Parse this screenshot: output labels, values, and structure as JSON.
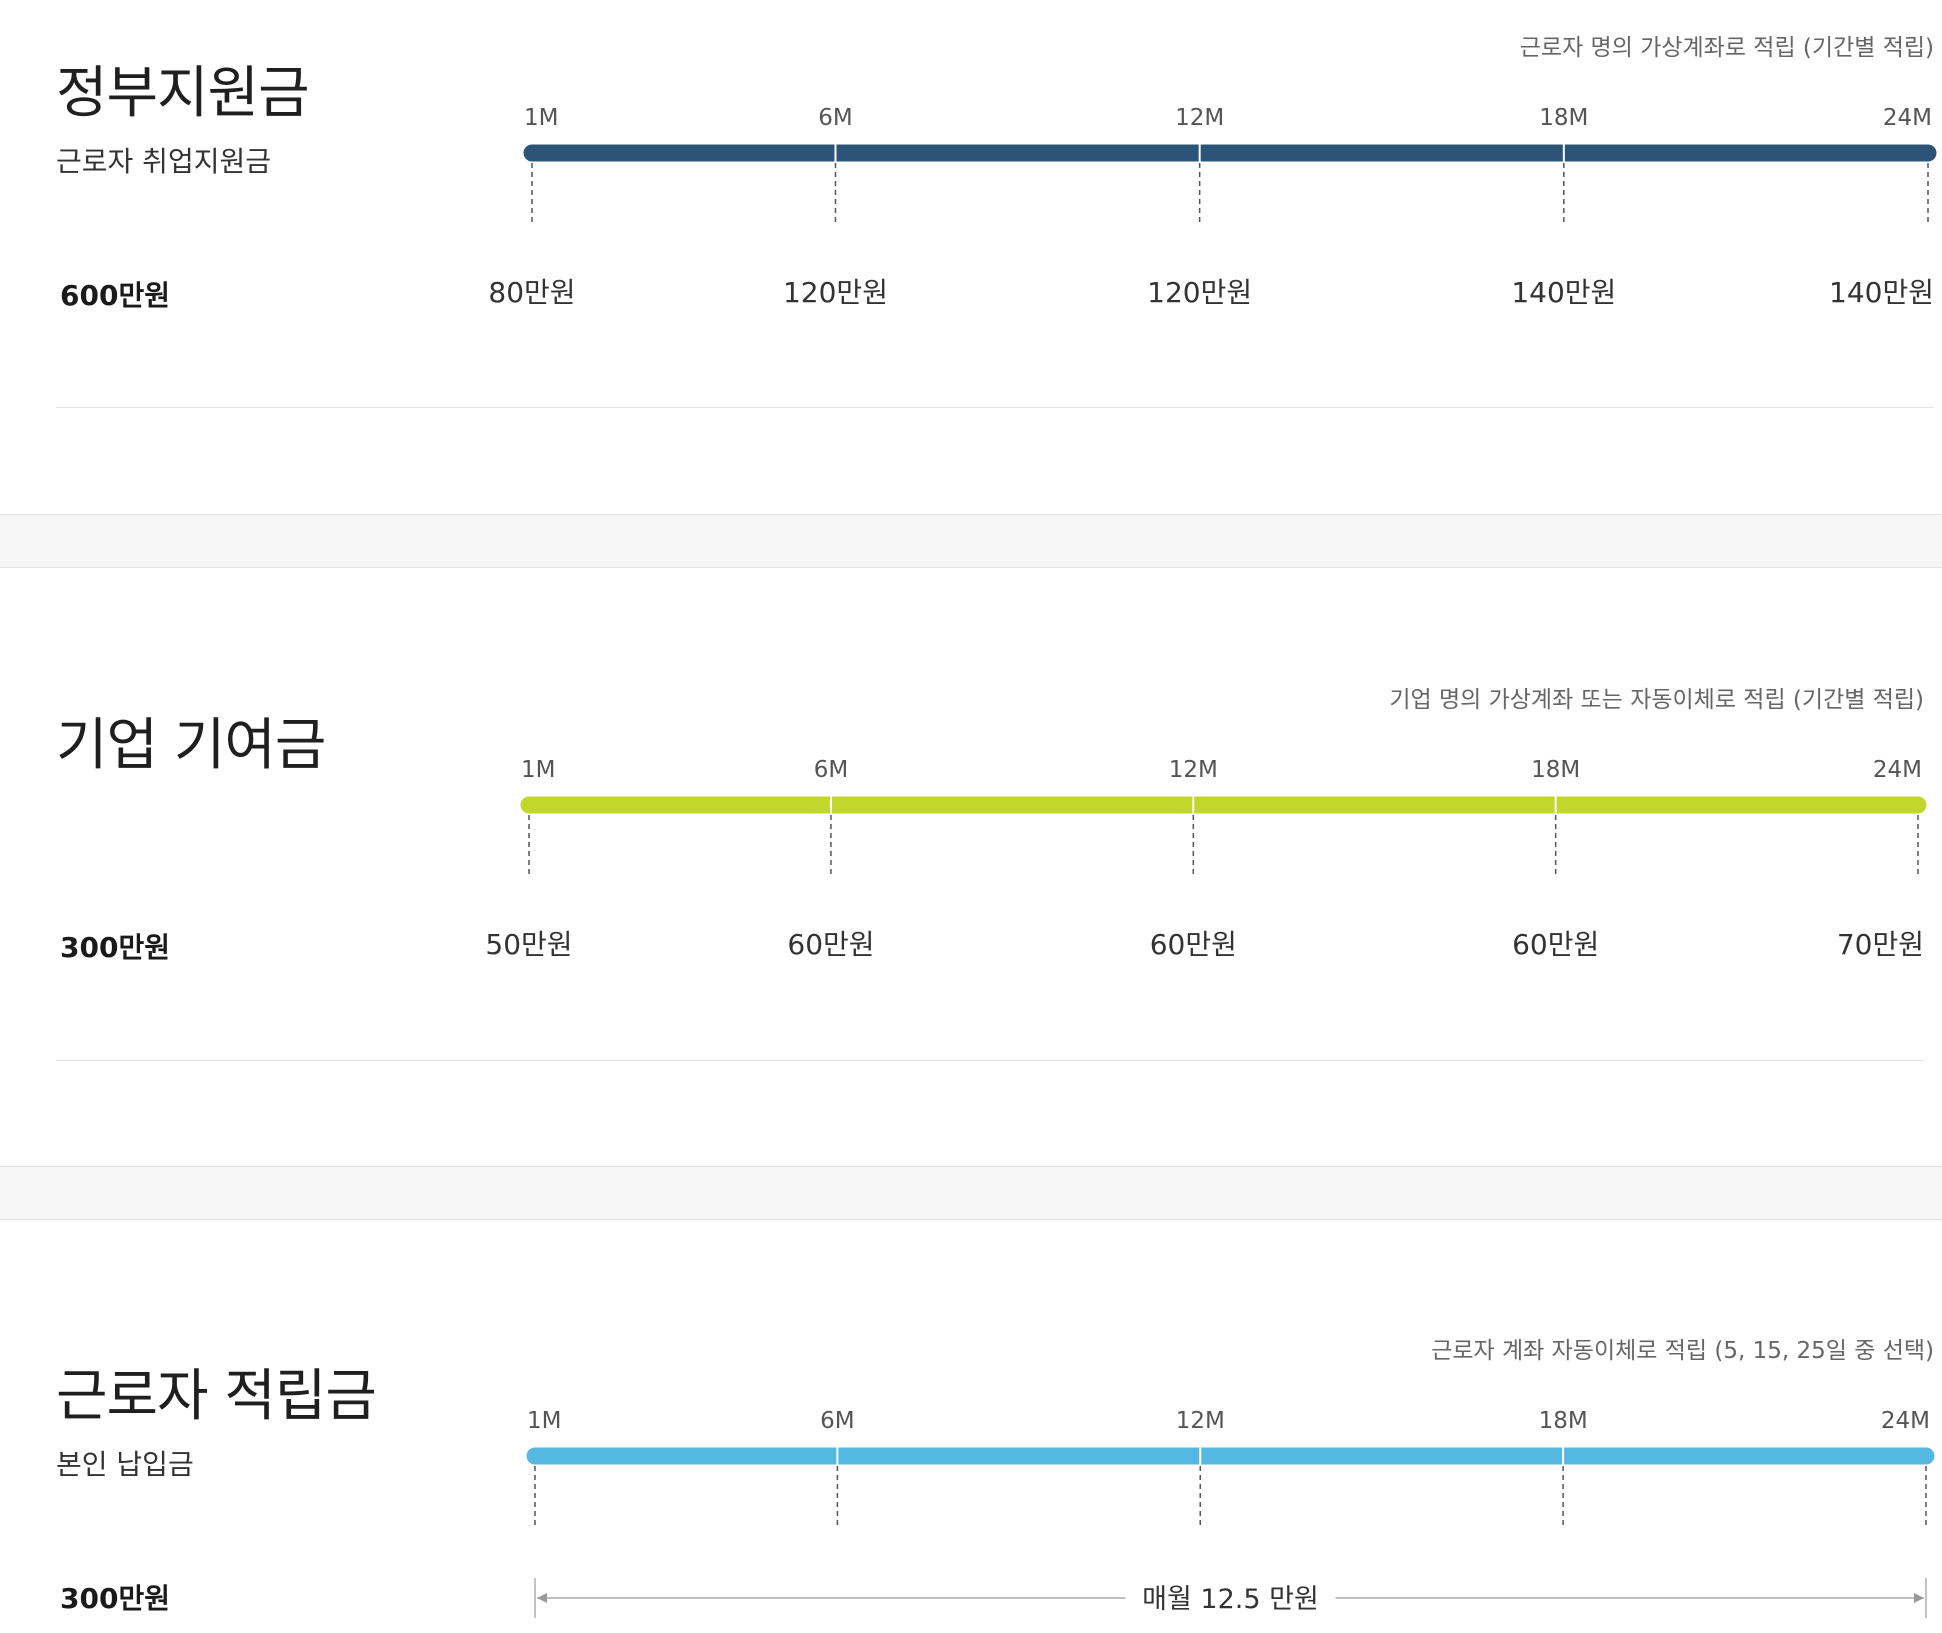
{
  "chart_data": [
    {
      "type": "timeline",
      "title": "정부지원금",
      "subtitle": "근로자 취업지원금",
      "total": "600만원",
      "note": "근로자 명의 가상계좌로 적립 (기간별 적립)",
      "bar_color": "#2c5478",
      "ticks": [
        "1M",
        "6M",
        "12M",
        "18M",
        "24M"
      ],
      "values": [
        "80만원",
        "120만원",
        "120만원",
        "140만원",
        "140만원"
      ],
      "range_label": ""
    },
    {
      "type": "timeline",
      "title": "기업 기여금",
      "subtitle": "",
      "total": "300만원",
      "note": "기업 명의 가상계좌 또는 자동이체로 적립 (기간별 적립)",
      "bar_color": "#c1d72e",
      "ticks": [
        "1M",
        "6M",
        "12M",
        "18M",
        "24M"
      ],
      "values": [
        "50만원",
        "60만원",
        "60만원",
        "60만원",
        "70만원"
      ],
      "range_label": ""
    },
    {
      "type": "timeline",
      "title": "근로자 적립금",
      "subtitle": "본인 납입금",
      "total": "300만원",
      "note": "근로자 계좌 자동이체로 적립 (5, 15, 25일 중 선택)",
      "bar_color": "#55b8e3",
      "ticks": [
        "1M",
        "6M",
        "12M",
        "18M",
        "24M"
      ],
      "values": [],
      "range_label": "매월 12.5 만원"
    }
  ]
}
